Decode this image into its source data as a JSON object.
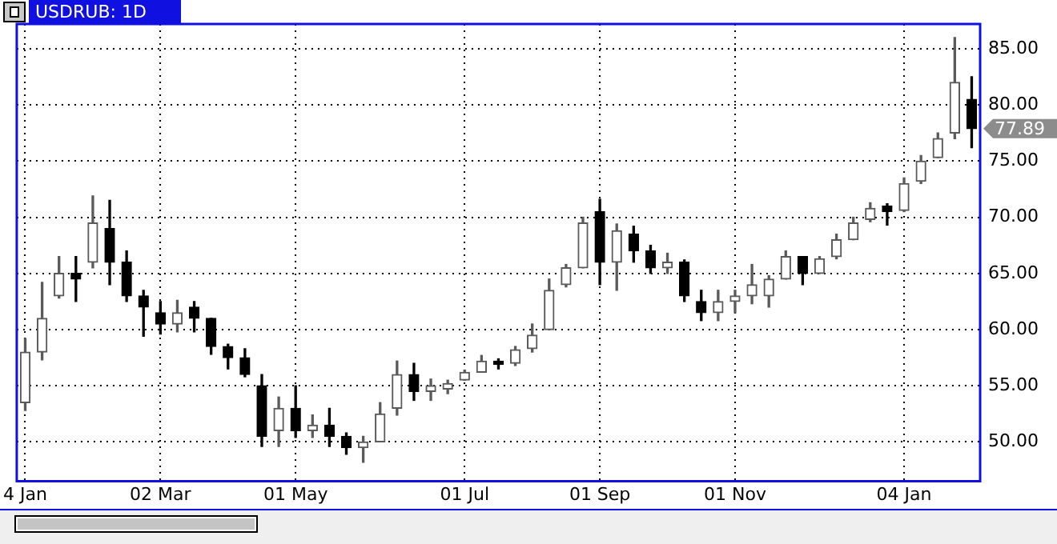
{
  "chart_data": {
    "type": "candlestick",
    "title": "USDRUB: 1D",
    "colors": [
      "#5a5a5a",
      "#5a5a5a",
      "#5a5a5a",
      "#000000",
      "#5a5a5a",
      "#000000",
      "#000000",
      "#000000",
      "#000000",
      "#5a5a5a",
      "#000000",
      "#000000",
      "#000000",
      "#000000",
      "#000000",
      "#5a5a5a",
      "#000000",
      "#5a5a5a",
      "#000000",
      "#000000",
      "#5a5a5a",
      "#5a5a5a",
      "#5a5a5a",
      "#000000",
      "#5a5a5a",
      "#5a5a5a",
      "#5a5a5a",
      "#5a5a5a",
      "#000000",
      "#5a5a5a",
      "#5a5a5a",
      "#5a5a5a",
      "#5a5a5a",
      "#5a5a5a",
      "#000000",
      "#5a5a5a",
      "#000000",
      "#000000",
      "#5a5a5a",
      "#000000",
      "#000000",
      "#5a5a5a",
      "#5a5a5a",
      "#5a5a5a",
      "#5a5a5a",
      "#5a5a5a",
      "#000000",
      "#5a5a5a",
      "#5a5a5a",
      "#5a5a5a",
      "#5a5a5a",
      "#000000",
      "#5a5a5a",
      "#5a5a5a",
      "#5a5a5a",
      "#5a5a5a",
      "#000000"
    ],
    "categories": [
      "4 Jan",
      null,
      null,
      null,
      null,
      null,
      null,
      null,
      "02 Mar",
      null,
      null,
      null,
      null,
      null,
      null,
      null,
      "01 May",
      null,
      null,
      null,
      null,
      null,
      null,
      null,
      null,
      null,
      "01 Jul",
      null,
      null,
      null,
      null,
      null,
      null,
      null,
      "01 Sep",
      null,
      null,
      null,
      null,
      null,
      null,
      null,
      "01 Nov",
      null,
      null,
      null,
      null,
      null,
      null,
      null,
      null,
      null,
      "04 Jan",
      null,
      null,
      null,
      null
    ],
    "ohlc": [
      [
        53.5,
        59.2,
        52.8,
        58
      ],
      [
        58,
        64.2,
        57.3,
        61
      ],
      [
        63,
        66.5,
        62.8,
        65
      ],
      [
        65,
        66.5,
        62.5,
        64.5
      ],
      [
        66,
        71.9,
        65.5,
        69.5
      ],
      [
        69,
        71.5,
        64,
        66
      ],
      [
        66,
        67,
        62.5,
        63
      ],
      [
        63,
        63.5,
        59.4,
        62
      ],
      [
        61.5,
        62.5,
        59.6,
        60.5
      ],
      [
        60.5,
        62.6,
        59.8,
        61.5
      ],
      [
        62,
        62.5,
        59.8,
        61
      ],
      [
        61,
        61,
        57.8,
        58.5
      ],
      [
        58.5,
        58.7,
        56.5,
        57.5
      ],
      [
        57.5,
        58.3,
        55.8,
        56
      ],
      [
        55,
        56,
        49.6,
        50.5
      ],
      [
        51,
        54,
        49.6,
        53
      ],
      [
        53,
        55,
        50.4,
        51
      ],
      [
        51,
        52.4,
        50.4,
        51.5
      ],
      [
        51.5,
        53,
        49.6,
        50.5
      ],
      [
        50.5,
        50.8,
        48.9,
        49.5
      ],
      [
        49.5,
        50.5,
        48.2,
        50
      ],
      [
        50,
        53.5,
        50,
        52.5
      ],
      [
        53,
        57.2,
        52.4,
        56
      ],
      [
        56,
        57,
        53.7,
        54.5
      ],
      [
        54.5,
        55.6,
        53.7,
        55
      ],
      [
        54.7,
        55.5,
        54.3,
        55.2
      ],
      [
        55.5,
        56.4,
        55.5,
        56.2
      ],
      [
        56.2,
        57.7,
        56.2,
        57.2
      ],
      [
        57.2,
        57.4,
        56.5,
        56.9
      ],
      [
        57,
        58.5,
        56.8,
        58.2
      ],
      [
        58.3,
        60.5,
        58,
        59.5
      ],
      [
        60,
        64.5,
        60,
        63.5
      ],
      [
        64,
        65.8,
        63.8,
        65.5
      ],
      [
        65.5,
        70,
        65.5,
        69.5
      ],
      [
        70.5,
        71.6,
        64,
        66
      ],
      [
        66,
        69.4,
        63.5,
        68.8
      ],
      [
        68.5,
        69.2,
        66,
        67
      ],
      [
        67,
        67.5,
        65,
        65.5
      ],
      [
        65.5,
        66.8,
        65,
        66
      ],
      [
        66,
        66.2,
        62.5,
        63
      ],
      [
        62.5,
        63.5,
        60.8,
        61.5
      ],
      [
        61.5,
        63.5,
        60.8,
        62.5
      ],
      [
        62.5,
        63.5,
        61.5,
        63
      ],
      [
        63,
        65.8,
        62.3,
        64
      ],
      [
        63,
        64.8,
        62,
        64.5
      ],
      [
        64.5,
        67,
        64.5,
        66.5
      ],
      [
        66.5,
        66.5,
        64,
        65
      ],
      [
        65,
        66.5,
        65,
        66.3
      ],
      [
        66.5,
        68.5,
        66.3,
        68
      ],
      [
        68,
        70,
        68,
        69.5
      ],
      [
        69.8,
        71.3,
        69.6,
        70.8
      ],
      [
        71,
        71.2,
        69.3,
        70.5
      ],
      [
        70.6,
        73.5,
        70.5,
        73
      ],
      [
        73.2,
        75.5,
        73,
        75
      ],
      [
        75.3,
        77.5,
        75.3,
        77
      ],
      [
        77.5,
        86,
        77,
        82
      ],
      [
        80.5,
        82.5,
        76.2,
        77.89
      ]
    ],
    "ylim": [
      46.5,
      87.2
    ],
    "yticks": [
      {
        "value": 50,
        "label": "50.00"
      },
      {
        "value": 55,
        "label": "55.00"
      },
      {
        "value": 60,
        "label": "60.00"
      },
      {
        "value": 65,
        "label": "65.00"
      },
      {
        "value": 70,
        "label": "70.00"
      },
      {
        "value": 75,
        "label": "75.00"
      },
      {
        "value": 80,
        "label": "80.00"
      },
      {
        "value": 85,
        "label": "85.00"
      }
    ],
    "grid": true,
    "annotations": [
      "77.89"
    ]
  }
}
